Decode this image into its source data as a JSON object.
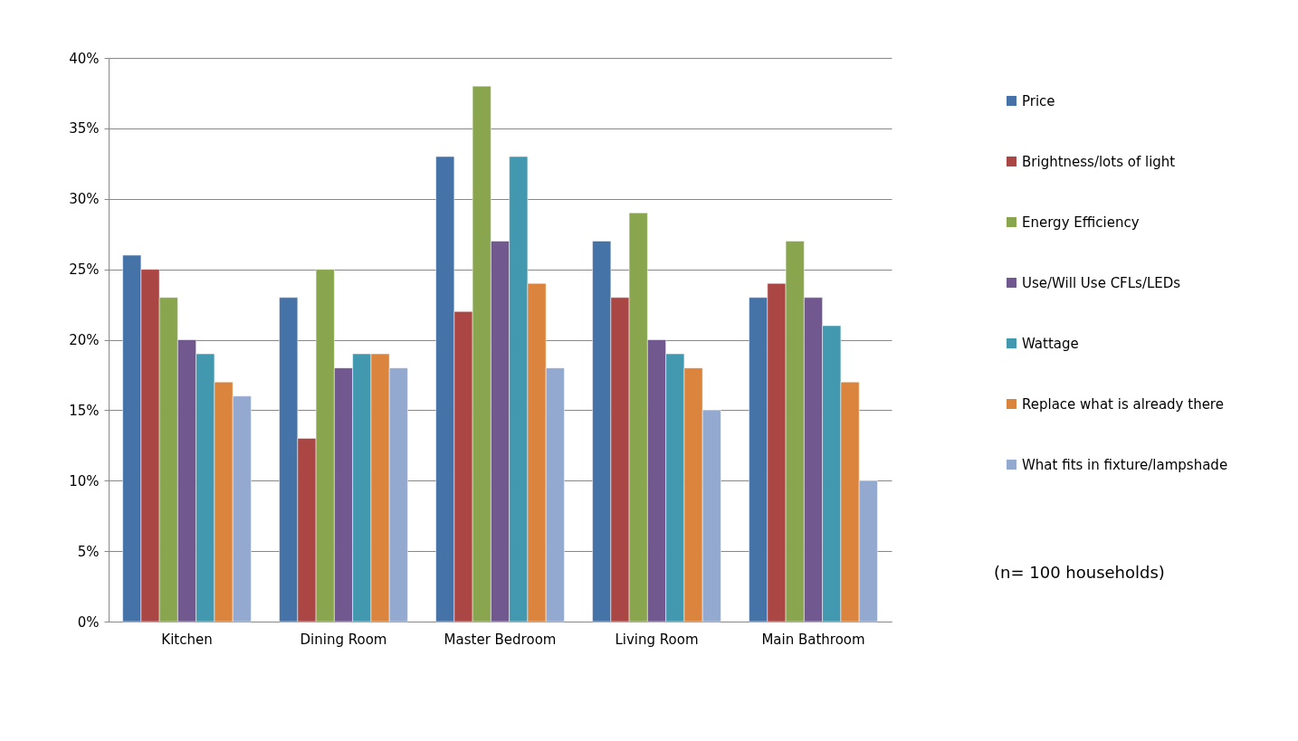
{
  "chart_data": {
    "type": "bar",
    "categories": [
      "Kitchen",
      "Dining Room",
      "Master Bedroom",
      "Living Room",
      "Main Bathroom"
    ],
    "series": [
      {
        "name": "Price",
        "color": "#4572a7",
        "values": [
          26,
          23,
          33,
          27,
          23
        ]
      },
      {
        "name": "Brightness/lots of light",
        "color": "#aa4643",
        "values": [
          25,
          13,
          22,
          23,
          24
        ]
      },
      {
        "name": "Energy Efficiency",
        "color": "#89a54e",
        "values": [
          23,
          25,
          38,
          29,
          27
        ]
      },
      {
        "name": "Use/Will Use CFLs/LEDs",
        "color": "#71588f",
        "values": [
          20,
          18,
          27,
          20,
          23
        ]
      },
      {
        "name": "Wattage",
        "color": "#4198af",
        "values": [
          19,
          19,
          33,
          19,
          21
        ]
      },
      {
        "name": "Replace what is already there",
        "color": "#db843d",
        "values": [
          17,
          19,
          24,
          18,
          17
        ]
      },
      {
        "name": "What fits in fixture/lampshade",
        "color": "#93a9cf",
        "values": [
          16,
          18,
          18,
          15,
          10
        ]
      }
    ],
    "ylim": [
      0,
      40
    ],
    "yticks": [
      {
        "value": 0,
        "label": "0%"
      },
      {
        "value": 5,
        "label": "5%"
      },
      {
        "value": 10,
        "label": "10%"
      },
      {
        "value": 15,
        "label": "15%"
      },
      {
        "value": 20,
        "label": "20%"
      },
      {
        "value": 25,
        "label": "25%"
      },
      {
        "value": 30,
        "label": "30%"
      },
      {
        "value": 35,
        "label": "35%"
      },
      {
        "value": 40,
        "label": "40%"
      }
    ],
    "grid": "y",
    "legend": "right",
    "annotations": [
      "(n= 100 households)"
    ]
  }
}
